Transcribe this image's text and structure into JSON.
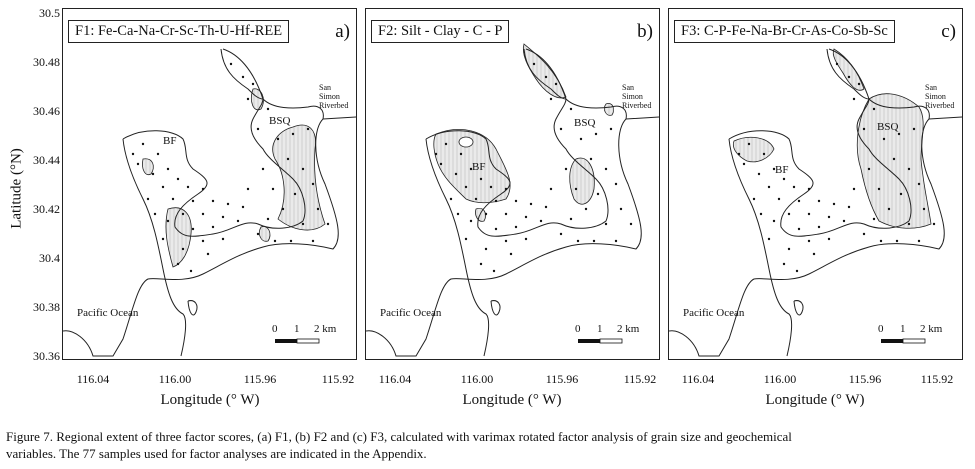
{
  "axes": {
    "ylabel": "Latitude (°N)",
    "xlabel": "Longitude (° W)",
    "yticks": [
      "30.5",
      "30.48",
      "30.46",
      "30.44",
      "30.42",
      "30.4",
      "30.38",
      "30.36"
    ],
    "xticks": [
      "116.04",
      "116.00",
      "115.96",
      "115.92"
    ]
  },
  "panels": [
    {
      "title": "F1: Fe-Ca-Na-Cr-Sc-Th-U-Hf-REE",
      "letter": "a)",
      "bf": "BF",
      "bsq": "BSQ",
      "ocean": "Pacific Ocean",
      "river": [
        "San",
        "Simon",
        "Riverbed"
      ],
      "scale": {
        "t0": "0",
        "t1": "1",
        "t2": "2 km"
      }
    },
    {
      "title": "F2: Silt - Clay - C - P",
      "letter": "b)",
      "bf": "BF",
      "bsq": "BSQ",
      "ocean": "Pacific Ocean",
      "river": [
        "San",
        "Simon",
        "Riverbed"
      ],
      "scale": {
        "t0": "0",
        "t1": "1",
        "t2": "2 km"
      }
    },
    {
      "title": "F3: C-P-Fe-Na-Br-Cr-As-Co-Sb-Sc",
      "letter": "c)",
      "bf": "BF",
      "bsq": "BSQ",
      "ocean": "Pacific Ocean",
      "river": [
        "San",
        "Simon",
        "Riverbed"
      ],
      "scale": {
        "t0": "0",
        "t1": "1",
        "t2": "2 km"
      }
    }
  ],
  "caption": {
    "line1": "Figure 7. Regional extent of three factor scores, (a) F1, (b) F2 and (c) F3, calculated with varimax rotated factor analysis of grain size and geochemical",
    "line2": "variables. The 77 samples used for factor analyses are indicated in the Appendix."
  },
  "colors": {
    "shade": "#d9d9d9",
    "line": "#222222"
  }
}
